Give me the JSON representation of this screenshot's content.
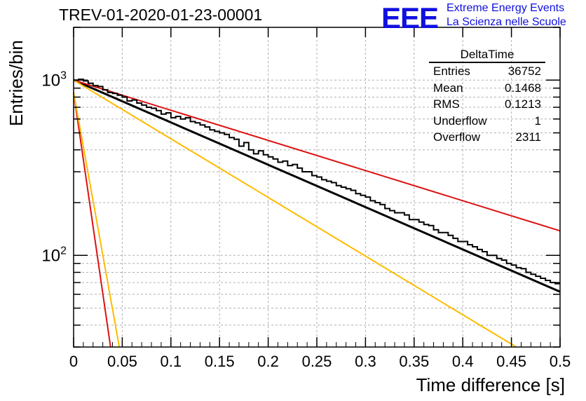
{
  "chart_data": {
    "type": "line",
    "title": "TREV-01-2020-01-23-00001",
    "xlabel": "Time difference [s]",
    "ylabel": "Entries/bin",
    "xlim": [
      0,
      0.5
    ],
    "ylim": [
      30,
      2000
    ],
    "yscale": "log",
    "grid": true,
    "x_ticks": [
      "0",
      "0.05",
      "0.1",
      "0.15",
      "0.2",
      "0.25",
      "0.3",
      "0.35",
      "0.4",
      "0.45",
      "0.5"
    ],
    "y_tick_labels": [
      {
        "value": 100,
        "base": "10",
        "exp": "2"
      },
      {
        "value": 1000,
        "base": "10",
        "exp": "3"
      }
    ],
    "histogram": {
      "name": "DeltaTime",
      "bin_width": 0.005,
      "values": [
        1000,
        1010,
        990,
        960,
        930,
        920,
        880,
        850,
        840,
        820,
        800,
        760,
        770,
        740,
        720,
        700,
        690,
        670,
        640,
        650,
        610,
        620,
        600,
        610,
        580,
        570,
        555,
        540,
        520,
        510,
        500,
        490,
        470,
        460,
        420,
        440,
        400,
        380,
        395,
        375,
        365,
        355,
        340,
        345,
        325,
        330,
        315,
        300,
        300,
        285,
        280,
        270,
        265,
        260,
        250,
        245,
        240,
        235,
        225,
        220,
        215,
        205,
        200,
        195,
        185,
        180,
        175,
        175,
        170,
        160,
        160,
        155,
        150,
        148,
        140,
        135,
        135,
        130,
        125,
        120,
        120,
        115,
        112,
        108,
        105,
        100,
        100,
        96,
        94,
        90,
        88,
        85,
        84,
        80,
        78,
        76,
        74,
        72,
        70,
        69
      ]
    },
    "series": [
      {
        "color": "#000000",
        "x": [
          0,
          0.5
        ],
        "y": [
          1000,
          62
        ]
      },
      {
        "color": "#dd1111",
        "x": [
          0,
          0.5
        ],
        "y": [
          1000,
          138
        ]
      },
      {
        "color": "#ffbb00",
        "x": [
          0,
          0.455
        ],
        "y": [
          1000,
          30
        ]
      },
      {
        "color": "#dd1111",
        "x": [
          0,
          0.038
        ],
        "y": [
          850,
          30
        ]
      },
      {
        "color": "#ffbb00",
        "x": [
          0,
          0.047
        ],
        "y": [
          850,
          30
        ]
      }
    ]
  },
  "stats_box": {
    "header": "DeltaTime",
    "rows": [
      {
        "label": "Entries",
        "value": "36752"
      },
      {
        "label": "Mean",
        "value": "0.1468"
      },
      {
        "label": "RMS",
        "value": "0.1213"
      },
      {
        "label": "Underflow",
        "value": "1"
      },
      {
        "label": "Overflow",
        "value": "2311"
      }
    ]
  },
  "branding": {
    "logo": "EEE",
    "line1": "Extreme Energy Events",
    "line2": "La Scienza nelle Scuole",
    "accent_color": "#1010e0"
  }
}
